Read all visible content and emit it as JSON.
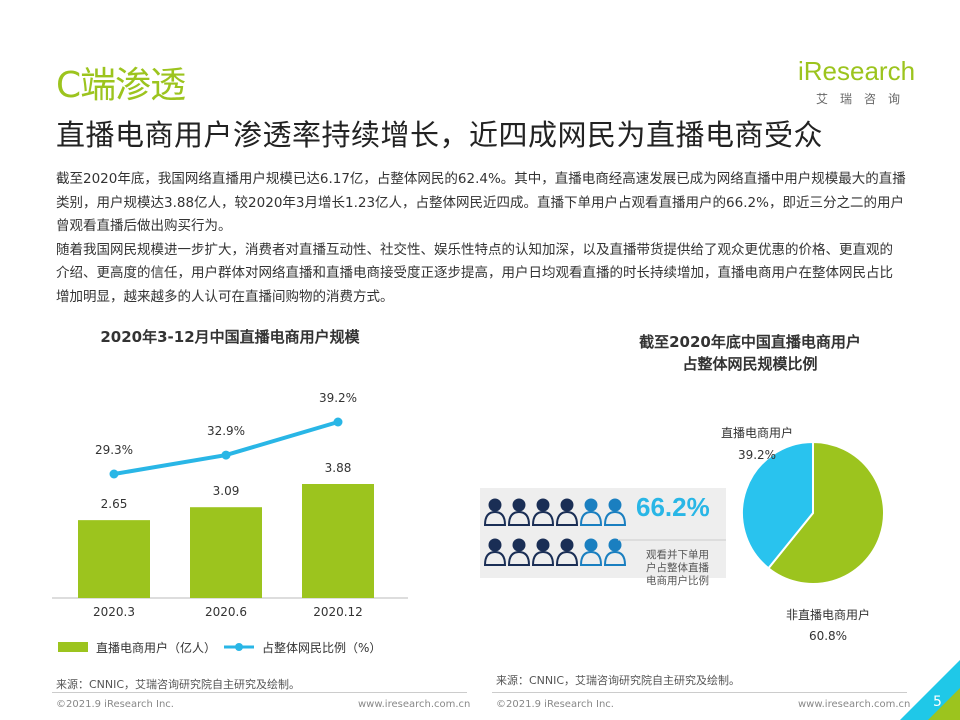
{
  "header": {
    "section_title": "C端渗透",
    "headline": "直播电商用户渗透率持续增长，近四成网民为直播电商受众",
    "logo_word": "iResearch",
    "logo_sub": "艾瑞咨询"
  },
  "body": {
    "paragraph1": "截至2020年底，我国网络直播用户规模已达6.17亿，占整体网民的62.4%。其中，直播电商经高速发展已成为网络直播中用户规模最大的直播类别，用户规模达3.88亿人，较2020年3月增长1.23亿人，占整体网民近四成。直播下单用户占观看直播用户的66.2%，即近三分之二的用户曾观看直播后做出购买行为。",
    "paragraph2": "随着我国网民规模进一步扩大，消费者对直播互动性、社交性、娱乐性特点的认知加深，以及直播带货提供给了观众更优惠的价格、更直观的介绍、更高度的信任，用户群体对网络直播和直播电商接受度正逐步提高，用户日均观看直播的时长持续增加，直播电商用户在整体网民占比增加明显，越来越多的人认可在直播间购物的消费方式。"
  },
  "chart_data": [
    {
      "type": "bar",
      "title": "2020年3-12月中国直播电商用户规模",
      "categories": [
        "2020.3",
        "2020.6",
        "2020.12"
      ],
      "series": [
        {
          "name": "直播电商用户（亿人）",
          "type": "bar",
          "values": [
            2.65,
            3.09,
            3.88
          ],
          "labels": [
            "2.65",
            "3.09",
            "3.88"
          ],
          "color": "#9cc41e"
        },
        {
          "name": "占整体网民比例（%）",
          "type": "line",
          "values": [
            29.3,
            32.9,
            39.2
          ],
          "labels": [
            "29.3%",
            "32.9%",
            "39.2%"
          ],
          "color": "#29b6e6"
        }
      ],
      "legend": "bottom"
    },
    {
      "type": "pie",
      "title": "截至2020年底中国直播电商用户占整体网民规模比例",
      "title_line1": "截至2020年底中国直播电商用户",
      "title_line2": "占整体网民规模比例",
      "slices": [
        {
          "name": "直播电商用户",
          "value": 39.2,
          "label": "39.2%",
          "color": "#29c3ee"
        },
        {
          "name": "非直播电商用户",
          "value": 60.8,
          "label": "60.8%",
          "color": "#9cc41e"
        }
      ],
      "callout": {
        "value": "66.2%",
        "text_lines": [
          "观看并下单用",
          "户占整体直播",
          "电商用户比例"
        ],
        "icon_rows": 2,
        "icons_per_row": 6,
        "highlighted_per_row": [
          2,
          2
        ]
      }
    }
  ],
  "sources": {
    "left": "来源：CNNIC，艾瑞咨询研究院自主研究及绘制。",
    "right": "来源：CNNIC，艾瑞咨询研究院自主研究及绘制。"
  },
  "footer": {
    "copyright_left": "©2021.9 iResearch Inc.",
    "url_left": "www.iresearch.com.cn",
    "copyright_right": "©2021.9 iResearch Inc.",
    "url_right": "www.iresearch.com.cn",
    "page_number": "5"
  },
  "colors": {
    "brand_green": "#9cc41e",
    "accent_blue": "#29b6e6",
    "icon_navy": "#1a2e55"
  }
}
